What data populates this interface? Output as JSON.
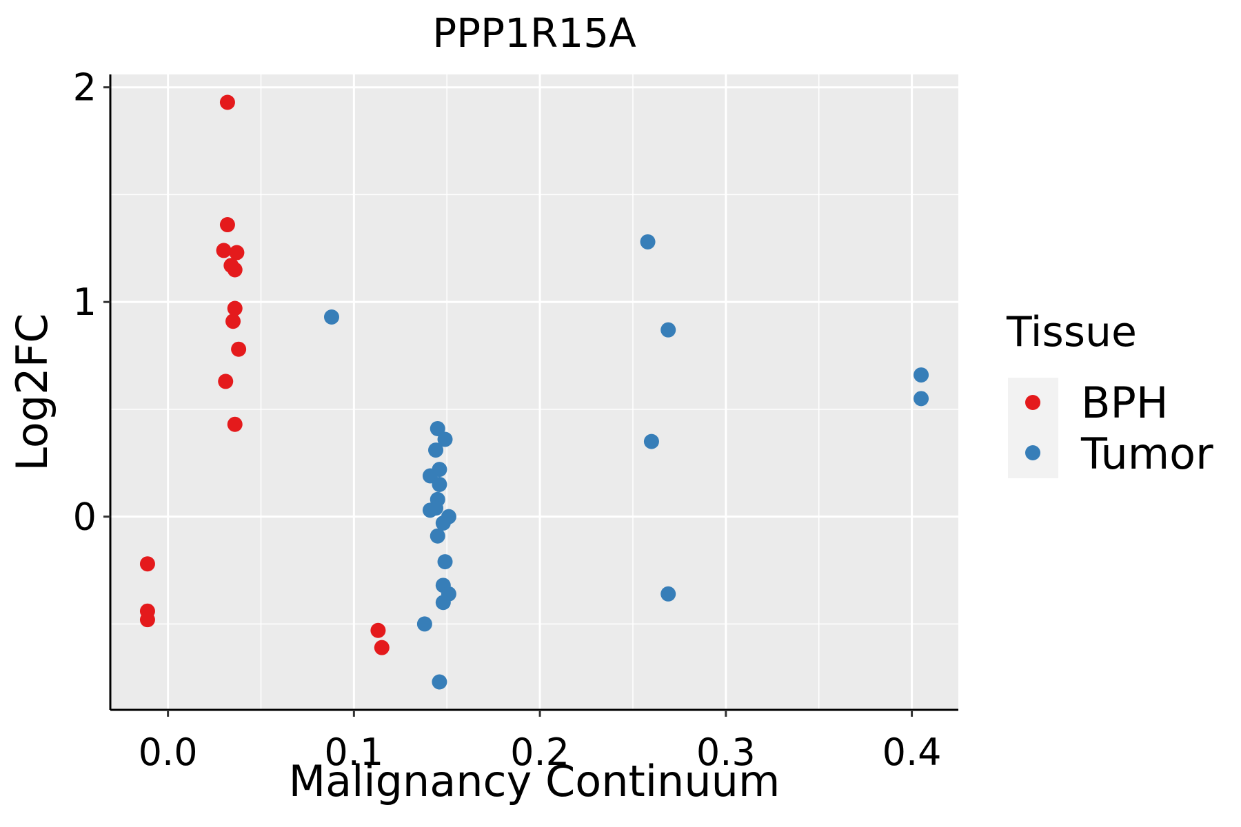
{
  "chart_data": {
    "type": "scatter",
    "title": "PPP1R15A",
    "xlabel": "Malignancy Continuum",
    "ylabel": "Log2FC",
    "xlim": [
      -0.031,
      0.425
    ],
    "ylim": [
      -0.9,
      2.06
    ],
    "xticks": [
      0.0,
      0.1,
      0.2,
      0.3,
      0.4
    ],
    "xtick_labels": [
      "0.0",
      "0.1",
      "0.2",
      "0.3",
      "0.4"
    ],
    "yticks": [
      0,
      1,
      2
    ],
    "ytick_labels": [
      "0",
      "1",
      "2"
    ],
    "grid": true,
    "legend": {
      "title": "Tissue",
      "position": "right",
      "entries": [
        {
          "label": "BPH",
          "color": "#E41A1C"
        },
        {
          "label": "Tumor",
          "color": "#377EB8"
        }
      ]
    },
    "series": [
      {
        "name": "BPH",
        "color": "#E41A1C",
        "points": [
          {
            "x": 0.032,
            "y": 1.93
          },
          {
            "x": 0.032,
            "y": 1.36
          },
          {
            "x": 0.03,
            "y": 1.24
          },
          {
            "x": 0.037,
            "y": 1.23
          },
          {
            "x": 0.034,
            "y": 1.17
          },
          {
            "x": 0.036,
            "y": 1.15
          },
          {
            "x": 0.036,
            "y": 0.97
          },
          {
            "x": 0.035,
            "y": 0.91
          },
          {
            "x": 0.038,
            "y": 0.78
          },
          {
            "x": 0.031,
            "y": 0.63
          },
          {
            "x": 0.036,
            "y": 0.43
          },
          {
            "x": -0.011,
            "y": -0.22
          },
          {
            "x": -0.011,
            "y": -0.44
          },
          {
            "x": -0.011,
            "y": -0.48
          },
          {
            "x": 0.113,
            "y": -0.53
          },
          {
            "x": 0.115,
            "y": -0.61
          }
        ]
      },
      {
        "name": "Tumor",
        "color": "#377EB8",
        "points": [
          {
            "x": 0.088,
            "y": 0.93
          },
          {
            "x": 0.145,
            "y": 0.41
          },
          {
            "x": 0.149,
            "y": 0.36
          },
          {
            "x": 0.144,
            "y": 0.31
          },
          {
            "x": 0.146,
            "y": 0.22
          },
          {
            "x": 0.141,
            "y": 0.19
          },
          {
            "x": 0.146,
            "y": 0.15
          },
          {
            "x": 0.145,
            "y": 0.08
          },
          {
            "x": 0.141,
            "y": 0.03
          },
          {
            "x": 0.144,
            "y": 0.04
          },
          {
            "x": 0.151,
            "y": 0.0
          },
          {
            "x": 0.148,
            "y": -0.03
          },
          {
            "x": 0.145,
            "y": -0.09
          },
          {
            "x": 0.149,
            "y": -0.21
          },
          {
            "x": 0.148,
            "y": -0.32
          },
          {
            "x": 0.151,
            "y": -0.36
          },
          {
            "x": 0.148,
            "y": -0.4
          },
          {
            "x": 0.138,
            "y": -0.5
          },
          {
            "x": 0.146,
            "y": -0.77
          },
          {
            "x": 0.258,
            "y": 1.28
          },
          {
            "x": 0.269,
            "y": 0.87
          },
          {
            "x": 0.26,
            "y": 0.35
          },
          {
            "x": 0.269,
            "y": -0.36
          },
          {
            "x": 0.405,
            "y": 0.66
          },
          {
            "x": 0.405,
            "y": 0.55
          }
        ]
      }
    ]
  }
}
